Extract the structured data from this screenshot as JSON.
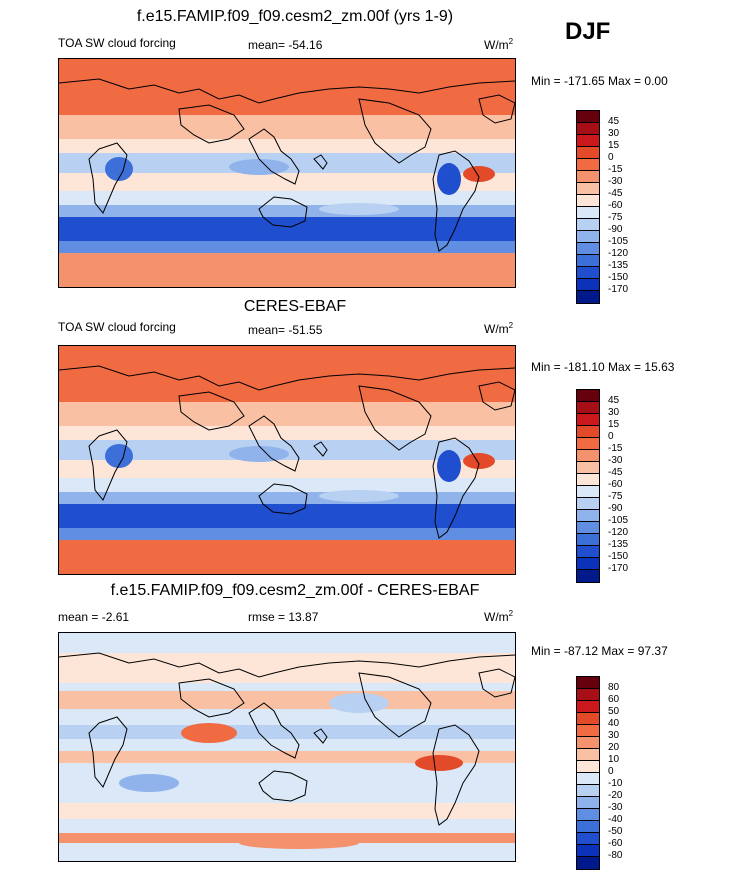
{
  "season": "DJF",
  "panels": [
    {
      "title": "f.e15.FAMIP.f09_f09.cesm2_zm.00f (yrs 1-9)",
      "left_label": "TOA SW cloud forcing",
      "center_label": "mean= -54.16",
      "units_base": "W/m",
      "units_exp": "2",
      "minmax": "Min = -171.65 Max =   0.00",
      "levels": [
        "45",
        "30",
        "15",
        "0",
        "-15",
        "-30",
        "-45",
        "-60",
        "-75",
        "-90",
        "-105",
        "-120",
        "-135",
        "-150",
        "-170"
      ],
      "colors": [
        "#67000d",
        "#a50f15",
        "#cb181d",
        "#e34a2a",
        "#f06a42",
        "#f4926e",
        "#f9c0a3",
        "#fde6d8",
        "#dbe8f8",
        "#b8d1f2",
        "#8fb3ea",
        "#5f8ee2",
        "#3d6fd9",
        "#1f4fcf",
        "#0b32b8",
        "#001a8c"
      ],
      "map_kind": "model"
    },
    {
      "title": "CERES-EBAF",
      "left_label": "TOA SW cloud forcing",
      "center_label": "mean= -51.55",
      "units_base": "W/m",
      "units_exp": "2",
      "minmax": "Min = -181.10 Max =  15.63",
      "levels": [
        "45",
        "30",
        "15",
        "0",
        "-15",
        "-30",
        "-45",
        "-60",
        "-75",
        "-90",
        "-105",
        "-120",
        "-135",
        "-150",
        "-170"
      ],
      "colors": [
        "#67000d",
        "#a50f15",
        "#cb181d",
        "#e34a2a",
        "#f06a42",
        "#f4926e",
        "#f9c0a3",
        "#fde6d8",
        "#dbe8f8",
        "#b8d1f2",
        "#8fb3ea",
        "#5f8ee2",
        "#3d6fd9",
        "#1f4fcf",
        "#0b32b8",
        "#001a8c"
      ],
      "map_kind": "obs"
    },
    {
      "title": "f.e15.FAMIP.f09_f09.cesm2_zm.00f - CERES-EBAF",
      "left_label": "mean =  -2.61",
      "center_label": "rmse =  13.87",
      "units_base": "W/m",
      "units_exp": "2",
      "minmax": "Min = -87.12 Max =  97.37",
      "levels": [
        "80",
        "60",
        "50",
        "40",
        "30",
        "20",
        "10",
        "0",
        "-10",
        "-20",
        "-30",
        "-40",
        "-50",
        "-60",
        "-80"
      ],
      "colors": [
        "#67000d",
        "#a50f15",
        "#cb181d",
        "#e34a2a",
        "#f06a42",
        "#f4926e",
        "#f9c0a3",
        "#fde6d8",
        "#dbe8f8",
        "#b8d1f2",
        "#8fb3ea",
        "#5f8ee2",
        "#3d6fd9",
        "#1f4fcf",
        "#0b32b8",
        "#001a8c"
      ],
      "map_kind": "diff"
    }
  ]
}
